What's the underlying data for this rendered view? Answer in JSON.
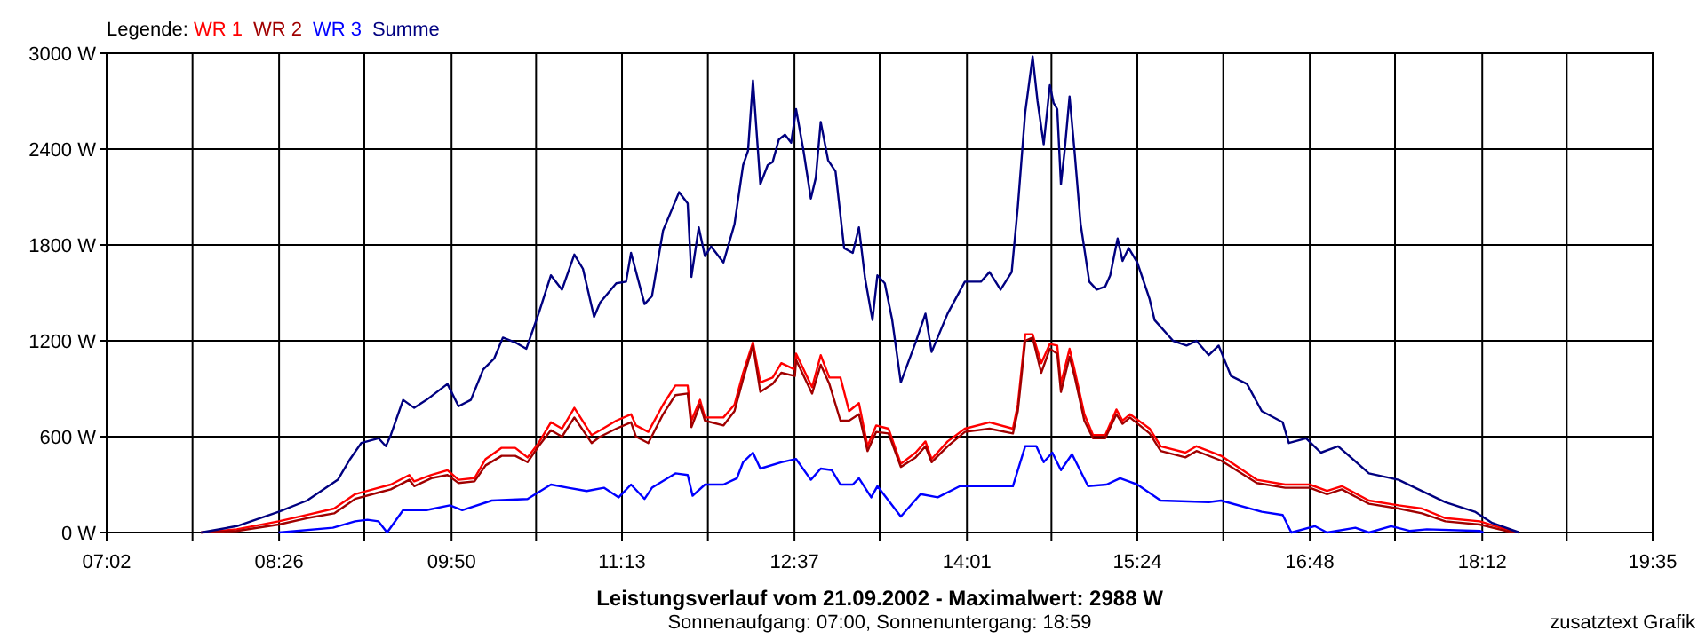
{
  "chart_data": {
    "type": "line",
    "title": "Leistungsverlauf vom 21.09.2002 - Maximalwert: 2988 W",
    "subtitle": "Sonnenaufgang: 07:00, Sonnenuntergang: 18:59",
    "annotations": [
      "zusatztext Grafik"
    ],
    "legend_title": "Legende:",
    "legend": "top left",
    "grid": true,
    "marker": "none",
    "line_style": "solid",
    "xlim": [
      7.0333,
      19.5833
    ],
    "xticks": [
      {
        "value": 7.0333,
        "label": "07:02"
      },
      {
        "value": 7.7306,
        "label": null
      },
      {
        "value": 8.4333,
        "label": "08:26"
      },
      {
        "value": 9.125,
        "label": null
      },
      {
        "value": 9.8333,
        "label": "09:50"
      },
      {
        "value": 10.5194,
        "label": null
      },
      {
        "value": 11.2167,
        "label": "11:13"
      },
      {
        "value": 11.9139,
        "label": null
      },
      {
        "value": 12.6167,
        "label": "12:37"
      },
      {
        "value": 13.3083,
        "label": null
      },
      {
        "value": 14.0167,
        "label": "14:01"
      },
      {
        "value": 14.7028,
        "label": null
      },
      {
        "value": 15.4,
        "label": "15:24"
      },
      {
        "value": 16.0972,
        "label": null
      },
      {
        "value": 16.8,
        "label": "16:48"
      },
      {
        "value": 17.4917,
        "label": null
      },
      {
        "value": 18.2,
        "label": "18:12"
      },
      {
        "value": 18.8861,
        "label": null
      },
      {
        "value": 19.5833,
        "label": "19:35"
      }
    ],
    "ylim": [
      0,
      3000
    ],
    "yticks": [
      {
        "value": 0,
        "label": "0 W"
      },
      {
        "value": 600,
        "label": "600 W"
      },
      {
        "value": 1200,
        "label": "1200 W"
      },
      {
        "value": 1800,
        "label": "1800 W"
      },
      {
        "value": 2400,
        "label": "2400 W"
      },
      {
        "value": 3000,
        "label": "3000 W"
      }
    ],
    "series": [
      {
        "name": "WR 1",
        "color": "#ff0000",
        "x": [
          7.8,
          8.09,
          8.43,
          8.66,
          8.88,
          9.05,
          9.24,
          9.34,
          9.49,
          9.53,
          9.67,
          9.8,
          9.89,
          10.02,
          10.11,
          10.24,
          10.35,
          10.45,
          10.54,
          10.64,
          10.73,
          10.83,
          10.97,
          11.04,
          11.17,
          11.29,
          11.33,
          11.43,
          11.55,
          11.65,
          11.75,
          11.78,
          11.85,
          11.89,
          12.04,
          12.13,
          12.2,
          12.28,
          12.34,
          12.44,
          12.51,
          12.62,
          12.63,
          12.76,
          12.83,
          12.9,
          12.99,
          13.06,
          13.14,
          13.21,
          13.28,
          13.38,
          13.48,
          13.6,
          13.68,
          13.73,
          13.86,
          14.0,
          14.2,
          14.39,
          14.43,
          14.49,
          14.55,
          14.62,
          14.69,
          14.75,
          14.78,
          14.85,
          14.89,
          14.97,
          15.04,
          15.14,
          15.23,
          15.28,
          15.34,
          15.5,
          15.59,
          15.79,
          15.88,
          16.08,
          16.37,
          16.6,
          16.8,
          16.94,
          17.06,
          17.28,
          17.52,
          17.71,
          17.9,
          18.18,
          18.39,
          18.5
        ],
        "values": [
          0,
          20,
          70,
          110,
          150,
          240,
          280,
          300,
          360,
          320,
          360,
          390,
          330,
          340,
          460,
          530,
          530,
          470,
          560,
          690,
          650,
          780,
          610,
          640,
          700,
          740,
          670,
          630,
          800,
          920,
          920,
          700,
          830,
          720,
          720,
          800,
          1000,
          1190,
          940,
          970,
          1060,
          1020,
          1120,
          910,
          1110,
          970,
          970,
          760,
          810,
          540,
          670,
          650,
          430,
          500,
          570,
          460,
          570,
          650,
          690,
          650,
          800,
          1240,
          1240,
          1060,
          1180,
          1170,
          930,
          1150,
          1020,
          740,
          610,
          610,
          770,
          700,
          740,
          650,
          540,
          500,
          540,
          480,
          330,
          300,
          300,
          260,
          290,
          200,
          170,
          150,
          90,
          70,
          20,
          0
        ]
      },
      {
        "name": "WR 2",
        "color": "#a00000",
        "x": [
          7.8,
          8.09,
          8.43,
          8.66,
          8.88,
          9.05,
          9.24,
          9.34,
          9.49,
          9.53,
          9.67,
          9.8,
          9.89,
          10.02,
          10.11,
          10.24,
          10.35,
          10.45,
          10.54,
          10.64,
          10.73,
          10.83,
          10.97,
          11.04,
          11.17,
          11.29,
          11.33,
          11.43,
          11.55,
          11.65,
          11.75,
          11.78,
          11.85,
          11.89,
          12.04,
          12.13,
          12.2,
          12.28,
          12.34,
          12.44,
          12.51,
          12.62,
          12.63,
          12.76,
          12.83,
          12.9,
          12.99,
          13.06,
          13.14,
          13.21,
          13.28,
          13.38,
          13.48,
          13.6,
          13.68,
          13.73,
          13.86,
          14.0,
          14.2,
          14.39,
          14.43,
          14.49,
          14.55,
          14.62,
          14.69,
          14.75,
          14.78,
          14.85,
          14.89,
          14.97,
          15.04,
          15.14,
          15.23,
          15.28,
          15.34,
          15.5,
          15.59,
          15.79,
          15.88,
          16.08,
          16.37,
          16.6,
          16.8,
          16.94,
          17.06,
          17.28,
          17.52,
          17.71,
          17.9,
          18.18,
          18.39,
          18.5
        ],
        "values": [
          0,
          10,
          50,
          90,
          120,
          210,
          250,
          270,
          330,
          290,
          340,
          360,
          310,
          320,
          420,
          480,
          480,
          440,
          540,
          640,
          600,
          720,
          560,
          600,
          650,
          690,
          600,
          560,
          740,
          860,
          870,
          660,
          800,
          700,
          670,
          760,
          960,
          1170,
          880,
          930,
          1000,
          980,
          1080,
          870,
          1050,
          930,
          700,
          700,
          740,
          510,
          630,
          620,
          410,
          470,
          540,
          440,
          540,
          630,
          650,
          620,
          760,
          1200,
          1220,
          1000,
          1150,
          1120,
          880,
          1100,
          980,
          700,
          590,
          590,
          740,
          680,
          720,
          620,
          510,
          470,
          510,
          450,
          310,
          280,
          280,
          240,
          270,
          180,
          150,
          120,
          70,
          50,
          10,
          0
        ]
      },
      {
        "name": "WR 3",
        "color": "#0000ff",
        "x": [
          8.43,
          8.87,
          9.05,
          9.15,
          9.24,
          9.31,
          9.44,
          9.63,
          9.82,
          9.92,
          10.16,
          10.45,
          10.64,
          10.78,
          10.93,
          11.07,
          11.19,
          11.29,
          11.4,
          11.46,
          11.65,
          11.75,
          11.79,
          11.89,
          12.04,
          12.15,
          12.2,
          12.28,
          12.34,
          12.51,
          12.63,
          12.75,
          12.83,
          12.92,
          12.99,
          13.09,
          13.14,
          13.24,
          13.29,
          13.48,
          13.64,
          13.78,
          13.96,
          14.39,
          14.49,
          14.58,
          14.64,
          14.71,
          14.78,
          14.87,
          15.0,
          15.15,
          15.26,
          15.4,
          15.59,
          15.98,
          16.08,
          16.41,
          16.58,
          16.65,
          16.84,
          16.94,
          17.17,
          17.28,
          17.46,
          17.61,
          17.75,
          18.18,
          18.21
        ],
        "values": [
          0,
          30,
          70,
          80,
          70,
          0,
          140,
          140,
          170,
          140,
          200,
          210,
          300,
          280,
          260,
          280,
          220,
          300,
          210,
          280,
          370,
          360,
          230,
          300,
          300,
          340,
          440,
          500,
          400,
          440,
          460,
          330,
          400,
          390,
          300,
          300,
          340,
          220,
          290,
          100,
          240,
          220,
          290,
          290,
          540,
          540,
          440,
          500,
          390,
          490,
          290,
          300,
          340,
          300,
          200,
          190,
          200,
          130,
          110,
          0,
          40,
          0,
          30,
          0,
          40,
          10,
          20,
          10,
          0
        ]
      },
      {
        "name": "Summe",
        "color": "#000080",
        "x": [
          7.8,
          8.09,
          8.43,
          8.66,
          8.91,
          9.01,
          9.1,
          9.24,
          9.3,
          9.34,
          9.44,
          9.53,
          9.63,
          9.8,
          9.89,
          9.99,
          10.09,
          10.18,
          10.25,
          10.35,
          10.44,
          10.54,
          10.64,
          10.73,
          10.83,
          10.9,
          10.99,
          11.04,
          11.17,
          11.25,
          11.29,
          11.4,
          11.46,
          11.55,
          11.68,
          11.75,
          11.78,
          11.84,
          11.89,
          11.94,
          12.04,
          12.13,
          12.2,
          12.24,
          12.28,
          12.34,
          12.4,
          12.44,
          12.49,
          12.54,
          12.59,
          12.63,
          12.69,
          12.75,
          12.79,
          12.83,
          12.89,
          12.95,
          13.02,
          13.09,
          13.14,
          13.19,
          13.25,
          13.29,
          13.35,
          13.41,
          13.48,
          13.6,
          13.68,
          13.73,
          13.86,
          14.0,
          14.13,
          14.2,
          14.29,
          14.38,
          14.43,
          14.49,
          14.55,
          14.59,
          14.64,
          14.69,
          14.72,
          14.75,
          14.78,
          14.81,
          14.85,
          14.89,
          14.94,
          15.01,
          15.07,
          15.14,
          15.18,
          15.24,
          15.28,
          15.33,
          15.4,
          15.5,
          15.54,
          15.69,
          15.8,
          15.88,
          15.98,
          16.06,
          16.16,
          16.29,
          16.41,
          16.58,
          16.63,
          16.77,
          16.89,
          17.03,
          17.28,
          17.52,
          17.9,
          18.14,
          18.28,
          18.5
        ],
        "values": [
          0,
          40,
          130,
          200,
          330,
          460,
          560,
          590,
          540,
          610,
          830,
          780,
          830,
          930,
          790,
          830,
          1020,
          1090,
          1220,
          1190,
          1150,
          1370,
          1610,
          1520,
          1740,
          1650,
          1350,
          1440,
          1560,
          1570,
          1750,
          1430,
          1480,
          1890,
          2130,
          2060,
          1600,
          1910,
          1730,
          1790,
          1690,
          1930,
          2300,
          2390,
          2830,
          2180,
          2300,
          2320,
          2460,
          2490,
          2440,
          2650,
          2390,
          2090,
          2220,
          2570,
          2330,
          2260,
          1780,
          1750,
          1910,
          1590,
          1330,
          1610,
          1560,
          1330,
          940,
          1190,
          1370,
          1130,
          1370,
          1570,
          1570,
          1630,
          1520,
          1630,
          2040,
          2630,
          2980,
          2700,
          2430,
          2800,
          2690,
          2650,
          2180,
          2390,
          2730,
          2390,
          1930,
          1570,
          1520,
          1540,
          1610,
          1840,
          1700,
          1780,
          1690,
          1460,
          1330,
          1200,
          1170,
          1200,
          1110,
          1170,
          980,
          930,
          760,
          690,
          560,
          590,
          500,
          540,
          370,
          330,
          190,
          130,
          60,
          0
        ]
      }
    ]
  }
}
